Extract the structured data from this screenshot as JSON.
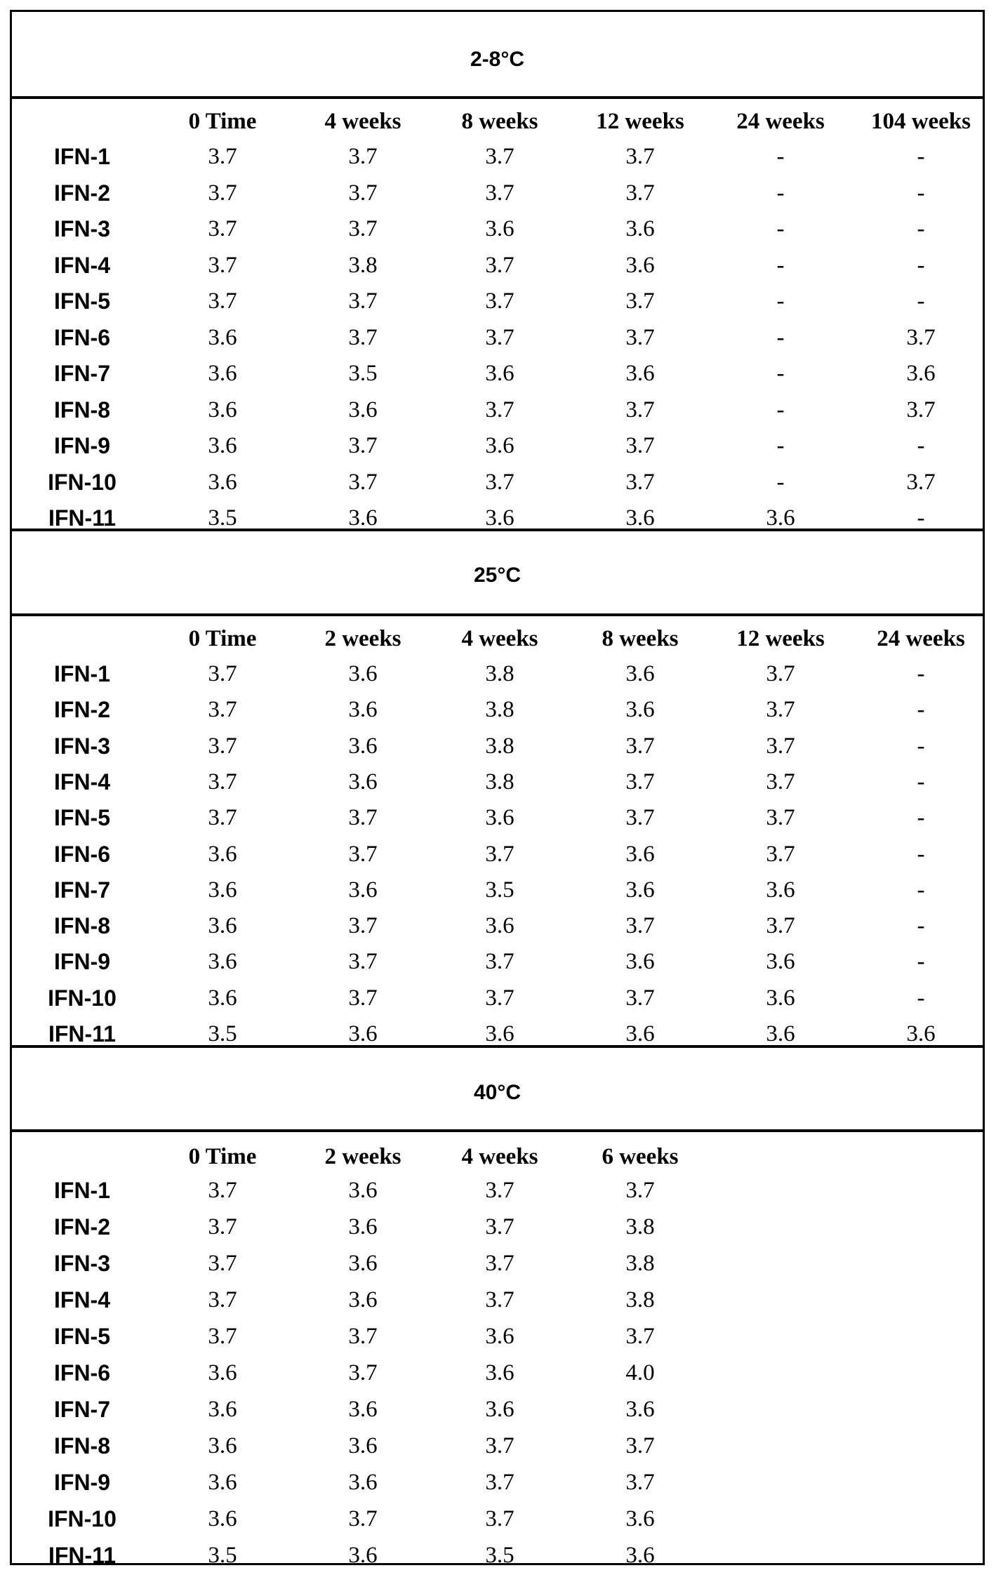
{
  "sections": [
    {
      "title": "2-8°C",
      "columns": [
        "0 Time",
        "4 weeks",
        "8 weeks",
        "12 weeks",
        "24 weeks",
        "104 weeks"
      ],
      "rows": [
        {
          "label": "IFN-1",
          "values": [
            "3.7",
            "3.7",
            "3.7",
            "3.7",
            "-",
            "-"
          ]
        },
        {
          "label": "IFN-2",
          "values": [
            "3.7",
            "3.7",
            "3.7",
            "3.7",
            "-",
            "-"
          ]
        },
        {
          "label": "IFN-3",
          "values": [
            "3.7",
            "3.7",
            "3.6",
            "3.6",
            "-",
            "-"
          ]
        },
        {
          "label": "IFN-4",
          "values": [
            "3.7",
            "3.8",
            "3.7",
            "3.6",
            "-",
            "-"
          ]
        },
        {
          "label": "IFN-5",
          "values": [
            "3.7",
            "3.7",
            "3.7",
            "3.7",
            "-",
            "-"
          ]
        },
        {
          "label": "IFN-6",
          "values": [
            "3.6",
            "3.7",
            "3.7",
            "3.7",
            "-",
            "3.7"
          ]
        },
        {
          "label": "IFN-7",
          "values": [
            "3.6",
            "3.5",
            "3.6",
            "3.6",
            "-",
            "3.6"
          ]
        },
        {
          "label": "IFN-8",
          "values": [
            "3.6",
            "3.6",
            "3.7",
            "3.7",
            "-",
            "3.7"
          ]
        },
        {
          "label": "IFN-9",
          "values": [
            "3.6",
            "3.7",
            "3.6",
            "3.7",
            "-",
            "-"
          ]
        },
        {
          "label": "IFN-10",
          "values": [
            "3.6",
            "3.7",
            "3.7",
            "3.7",
            "-",
            "3.7"
          ]
        },
        {
          "label": "IFN-11",
          "values": [
            "3.5",
            "3.6",
            "3.6",
            "3.6",
            "3.6",
            "-"
          ]
        }
      ]
    },
    {
      "title": "25°C",
      "columns": [
        "0 Time",
        "2 weeks",
        "4 weeks",
        "8 weeks",
        "12 weeks",
        "24 weeks"
      ],
      "rows": [
        {
          "label": "IFN-1",
          "values": [
            "3.7",
            "3.6",
            "3.8",
            "3.6",
            "3.7",
            "-"
          ]
        },
        {
          "label": "IFN-2",
          "values": [
            "3.7",
            "3.6",
            "3.8",
            "3.6",
            "3.7",
            "-"
          ]
        },
        {
          "label": "IFN-3",
          "values": [
            "3.7",
            "3.6",
            "3.8",
            "3.7",
            "3.7",
            "-"
          ]
        },
        {
          "label": "IFN-4",
          "values": [
            "3.7",
            "3.6",
            "3.8",
            "3.7",
            "3.7",
            "-"
          ]
        },
        {
          "label": "IFN-5",
          "values": [
            "3.7",
            "3.7",
            "3.6",
            "3.7",
            "3.7",
            "-"
          ]
        },
        {
          "label": "IFN-6",
          "values": [
            "3.6",
            "3.7",
            "3.7",
            "3.6",
            "3.7",
            "-"
          ]
        },
        {
          "label": "IFN-7",
          "values": [
            "3.6",
            "3.6",
            "3.5",
            "3.6",
            "3.6",
            "-"
          ]
        },
        {
          "label": "IFN-8",
          "values": [
            "3.6",
            "3.7",
            "3.6",
            "3.7",
            "3.7",
            "-"
          ]
        },
        {
          "label": "IFN-9",
          "values": [
            "3.6",
            "3.7",
            "3.7",
            "3.6",
            "3.6",
            "-"
          ]
        },
        {
          "label": "IFN-10",
          "values": [
            "3.6",
            "3.7",
            "3.7",
            "3.7",
            "3.6",
            "-"
          ]
        },
        {
          "label": "IFN-11",
          "values": [
            "3.5",
            "3.6",
            "3.6",
            "3.6",
            "3.6",
            "3.6"
          ]
        }
      ]
    },
    {
      "title": "40°C",
      "columns": [
        "0 Time",
        "2 weeks",
        "4 weeks",
        "6 weeks"
      ],
      "rows": [
        {
          "label": "IFN-1",
          "values": [
            "3.7",
            "3.6",
            "3.7",
            "3.7"
          ]
        },
        {
          "label": "IFN-2",
          "values": [
            "3.7",
            "3.6",
            "3.7",
            "3.8"
          ]
        },
        {
          "label": "IFN-3",
          "values": [
            "3.7",
            "3.6",
            "3.7",
            "3.8"
          ]
        },
        {
          "label": "IFN-4",
          "values": [
            "3.7",
            "3.6",
            "3.7",
            "3.8"
          ]
        },
        {
          "label": "IFN-5",
          "values": [
            "3.7",
            "3.7",
            "3.6",
            "3.7"
          ]
        },
        {
          "label": "IFN-6",
          "values": [
            "3.6",
            "3.7",
            "3.6",
            "4.0"
          ]
        },
        {
          "label": "IFN-7",
          "values": [
            "3.6",
            "3.6",
            "3.6",
            "3.6"
          ]
        },
        {
          "label": "IFN-8",
          "values": [
            "3.6",
            "3.6",
            "3.7",
            "3.7"
          ]
        },
        {
          "label": "IFN-9",
          "values": [
            "3.6",
            "3.6",
            "3.7",
            "3.7"
          ]
        },
        {
          "label": "IFN-10",
          "values": [
            "3.6",
            "3.7",
            "3.7",
            "3.6"
          ]
        },
        {
          "label": "IFN-11",
          "values": [
            "3.5",
            "3.6",
            "3.5",
            "3.6"
          ]
        }
      ]
    }
  ]
}
